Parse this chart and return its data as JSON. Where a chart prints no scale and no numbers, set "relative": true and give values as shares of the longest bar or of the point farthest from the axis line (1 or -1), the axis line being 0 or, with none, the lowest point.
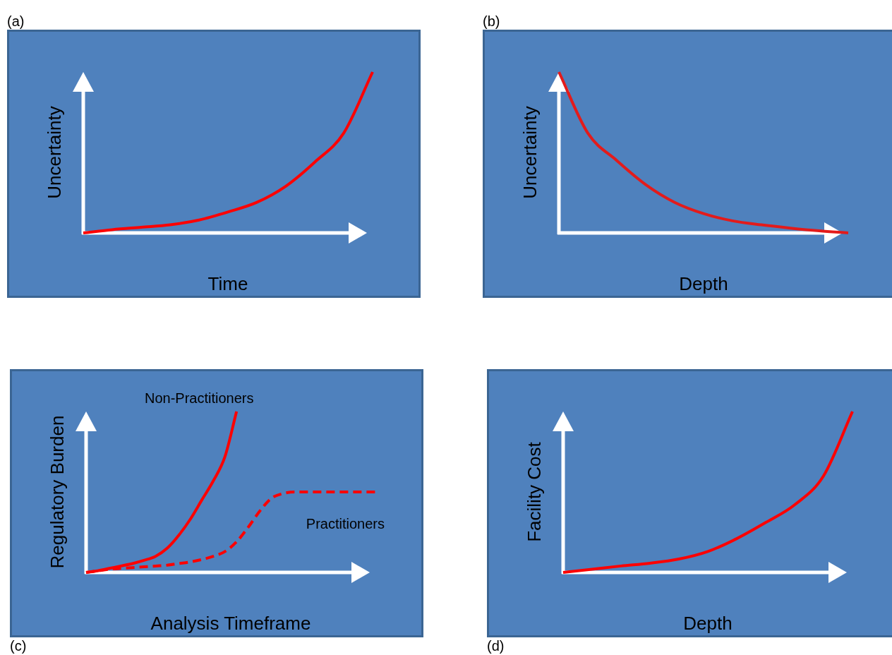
{
  "chart_data": [
    {
      "type": "line",
      "title": "(a)",
      "xlabel": "Time",
      "ylabel": "Uncertainty",
      "relative": true,
      "marker": "none",
      "categories": [
        null,
        null,
        null,
        null,
        null,
        null,
        null,
        null,
        null,
        null,
        null
      ],
      "series": [
        {
          "color": "#ff0000",
          "values": [
            0,
            0.02,
            0.035,
            0.05,
            0.08,
            0.13,
            0.19,
            0.29,
            0.44,
            0.62,
            1
          ]
        }
      ]
    },
    {
      "type": "line",
      "title": "(b)",
      "xlabel": "Depth",
      "ylabel": "Uncertainty",
      "relative": true,
      "marker": "none",
      "categories": [
        null,
        null,
        null,
        null,
        null,
        null,
        null,
        null,
        null,
        null,
        null
      ],
      "series": [
        {
          "color": "#e31b1b",
          "values": [
            1,
            0.62,
            0.45,
            0.3,
            0.19,
            0.12,
            0.075,
            0.05,
            0.03,
            0.013,
            0
          ]
        }
      ]
    },
    {
      "type": "line",
      "title": "(c)",
      "xlabel": "Analysis Timeframe",
      "ylabel": "Regulatory Burden",
      "relative": true,
      "marker": "none",
      "categories": [
        null,
        null,
        null,
        null,
        null,
        null,
        null,
        null,
        null,
        null,
        null,
        null,
        null,
        null,
        null,
        null,
        null,
        null,
        null,
        null,
        null,
        null,
        null,
        null,
        null,
        null
      ],
      "series": [
        {
          "name": "Non-Practitioners",
          "color": "#ff0000",
          "line_style": "solid",
          "values": [
            0,
            0.01,
            0.025,
            0.04,
            0.055,
            0.075,
            0.1,
            0.15,
            0.23,
            0.33,
            0.45,
            0.57,
            0.72,
            1,
            null,
            null,
            null,
            null,
            null,
            null,
            null,
            null,
            null,
            null,
            null,
            null
          ]
        },
        {
          "name": "Practitioners",
          "color": "#ff0000",
          "line_style": "dashed",
          "values": [
            0,
            0.01,
            0.02,
            0.025,
            0.03,
            0.035,
            0.04,
            0.045,
            0.055,
            0.065,
            0.08,
            0.1,
            0.13,
            0.19,
            0.28,
            0.38,
            0.46,
            0.49,
            0.5,
            0.5,
            0.5,
            0.5,
            0.5,
            0.5,
            0.5,
            0.5
          ]
        }
      ]
    },
    {
      "type": "line",
      "title": "(d)",
      "xlabel": "Depth",
      "ylabel": "Facility Cost",
      "relative": true,
      "marker": "none",
      "categories": [
        null,
        null,
        null,
        null,
        null,
        null,
        null,
        null,
        null,
        null,
        null
      ],
      "series": [
        {
          "color": "#ff0000",
          "values": [
            0,
            0.02,
            0.04,
            0.057,
            0.083,
            0.13,
            0.21,
            0.31,
            0.42,
            0.6,
            1
          ]
        }
      ]
    }
  ]
}
